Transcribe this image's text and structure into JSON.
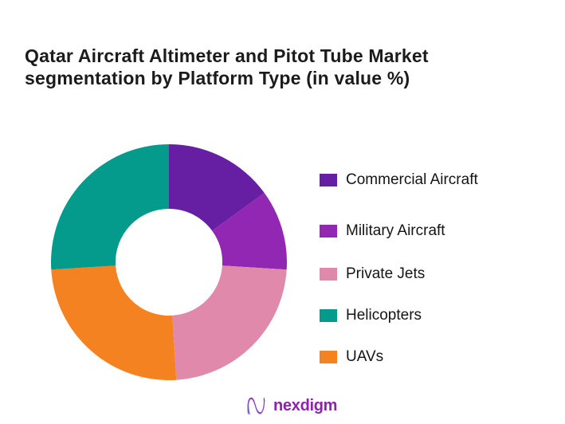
{
  "title": {
    "line1": "Qatar Aircraft Altimeter and Pitot Tube Market",
    "line2": "segmentation by Platform Type (in value %)"
  },
  "chart_data": {
    "type": "pie",
    "subtype": "donut",
    "title": "Qatar Aircraft Altimeter and Pitot Tube Market segmentation by Platform Type (in value %)",
    "unit": "value %",
    "inner_radius_ratio": 0.45,
    "start_angle_deg": 0,
    "direction": "clockwise",
    "data_labels_shown": false,
    "legend_position": "right",
    "slices": [
      {
        "label": "Commercial Aircraft",
        "value": 15,
        "color": "#661FA3"
      },
      {
        "label": "Military Aircraft",
        "value": 11,
        "color": "#9227B4"
      },
      {
        "label": "Private Jets",
        "value": 23,
        "color": "#E089AB"
      },
      {
        "label": "Helicopters",
        "value": 26,
        "color": "#049B8C"
      },
      {
        "label": "UAVs",
        "value": 25,
        "color": "#F58220"
      }
    ],
    "clockwise_order_from_top": [
      "Commercial Aircraft",
      "Military Aircraft",
      "Private Jets",
      "UAVs",
      "Helicopters"
    ]
  },
  "footer": {
    "logo_text": "nexdigm"
  }
}
